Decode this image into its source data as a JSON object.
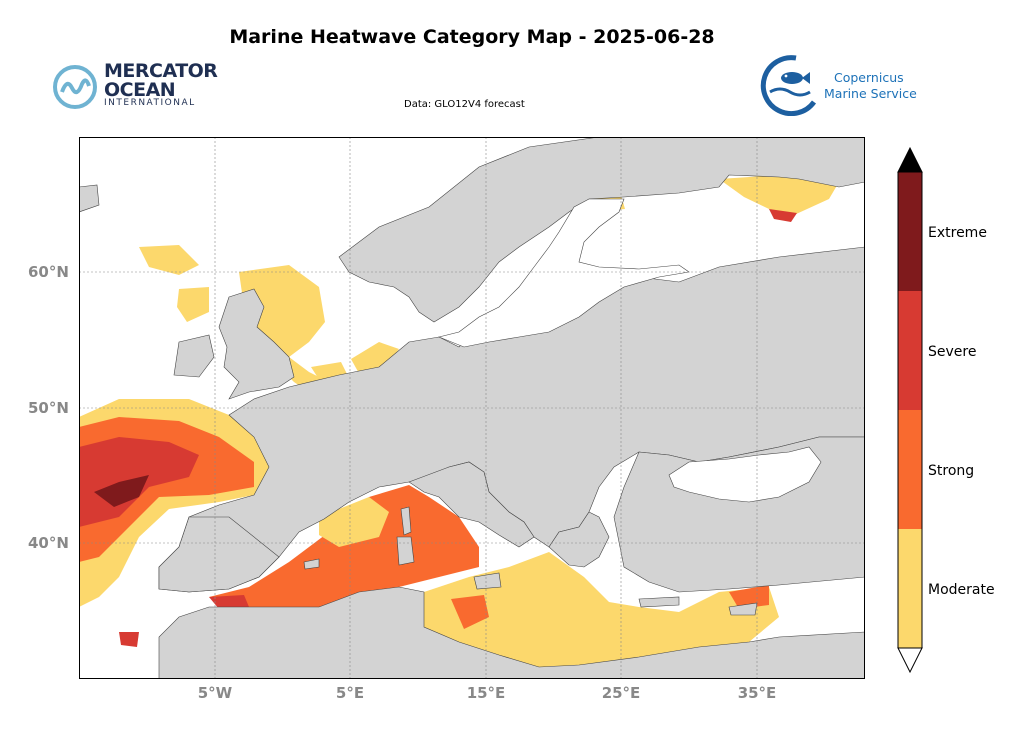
{
  "title": "Marine Heatwave Category Map - 2025-06-28",
  "subtitle": "Data: GLO12V4 forecast",
  "logos": {
    "left": {
      "line1": "MERCATOR",
      "line2": "OCEAN",
      "line3": "INTERNATIONAL",
      "icon": "mercator-wave-icon"
    },
    "right": {
      "line1": "Copernicus",
      "line2": "Marine Service",
      "icon": "copernicus-fish-icon"
    }
  },
  "map": {
    "extent_lon": [
      -15,
      43
    ],
    "extent_lat": [
      30,
      70
    ],
    "lat_labels": [
      "60°N",
      "50°N",
      "40°N"
    ],
    "lon_labels": [
      "5°W",
      "5°E",
      "15°E",
      "25°E",
      "35°E"
    ],
    "colors": {
      "land": "#d3d3d3",
      "sea_none": "#ffffff"
    }
  },
  "colorbar": {
    "categories": [
      {
        "label": "Moderate",
        "color": "#fcd86c"
      },
      {
        "label": "Strong",
        "color": "#f96a2f"
      },
      {
        "label": "Severe",
        "color": "#d73a32"
      },
      {
        "label": "Extreme",
        "color": "#7f1a1c"
      }
    ],
    "over_color": "#000000",
    "under_color": "#ffffff"
  }
}
